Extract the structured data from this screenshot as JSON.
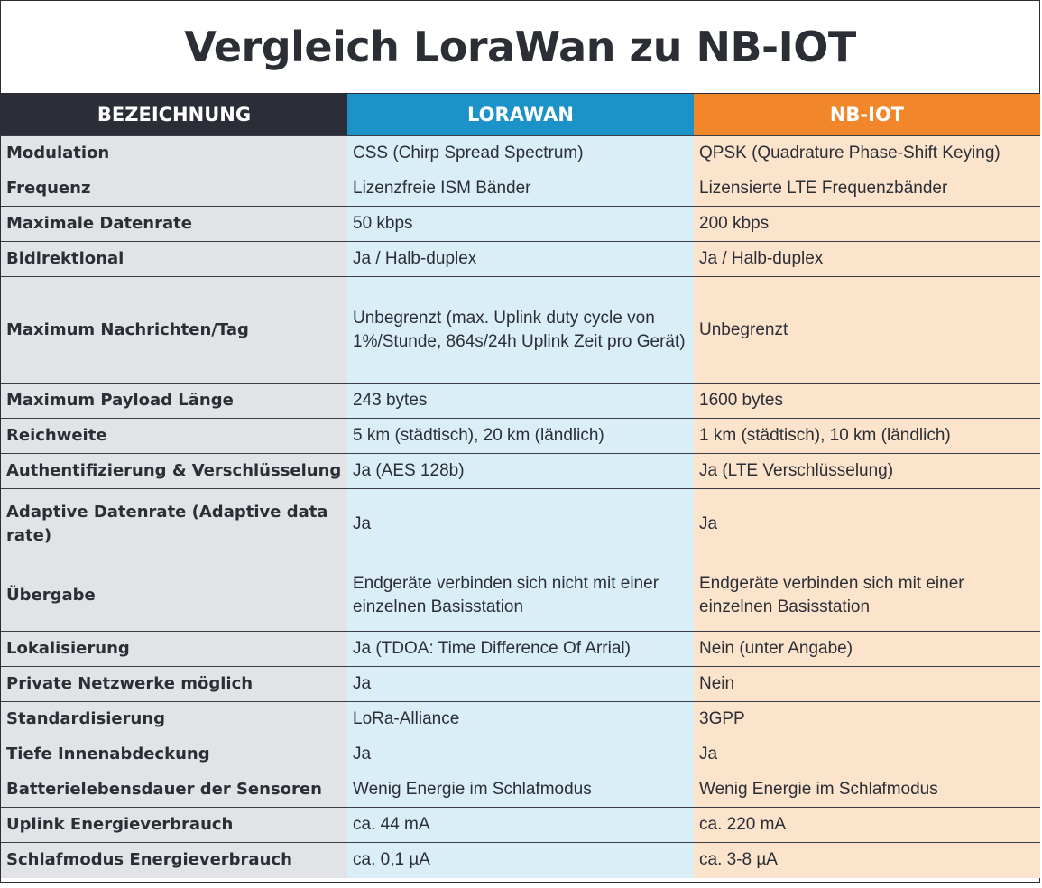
{
  "title": "Vergleich LoraWan zu NB-IOT",
  "headers": [
    "BEZEICHNUNG",
    "LORAWAN",
    "NB-IOT"
  ],
  "rows": [
    {
      "label": "Modulation",
      "lora": "CSS (Chirp Spread Spectrum)",
      "nb": "QPSK (Quadrature Phase-Shift Keying)"
    },
    {
      "label": "Frequenz",
      "lora": "Lizenzfreie ISM Bänder",
      "nb": "Lizensierte LTE Frequenzbänder"
    },
    {
      "label": "Maximale Datenrate",
      "lora": "50 kbps",
      "nb": "200 kbps"
    },
    {
      "label": "Bidirektional",
      "lora": "Ja / Halb-duplex",
      "nb": "Ja / Halb-duplex"
    },
    {
      "label": "Maximum Nachrichten/Tag",
      "lora": "Unbegrenzt (max. Uplink duty cycle von 1%/Stunde, 864s/24h Uplink Zeit pro Gerät)",
      "nb": "Unbegrenzt"
    },
    {
      "label": "Maximum Payload Länge",
      "lora": "243 bytes",
      "nb": "1600 bytes"
    },
    {
      "label": "Reichweite",
      "lora": "5 km (städtisch), 20 km (ländlich)",
      "nb": "1 km (städtisch), 10 km (ländlich)"
    },
    {
      "label": "Authentifizierung & Verschlüsselung",
      "lora": "Ja (AES 128b)",
      "nb": "Ja (LTE Verschlüsselung)"
    },
    {
      "label": "Adaptive Datenrate (Adaptive data rate)",
      "lora": "Ja",
      "nb": "Ja"
    },
    {
      "label": "Übergabe",
      "lora": "Endgeräte verbinden sich nicht mit einer einzelnen Basisstation",
      "nb": "Endgeräte verbinden sich mit einer einzelnen Basisstation"
    },
    {
      "label": "Lokalisierung",
      "lora": "Ja (TDOA: Time Difference Of Arrial)",
      "nb": "Nein (unter Angabe)"
    },
    {
      "label": "Private Netzwerke möglich",
      "lora": "Ja",
      "nb": "Nein"
    },
    {
      "label": "Standardisierung",
      "lora": "LoRa-Alliance",
      "nb": "3GPP"
    },
    {
      "label": "Tiefe Innenabdeckung",
      "lora": "Ja",
      "nb": "Ja"
    },
    {
      "label": "Batterielebensdauer der Sensoren",
      "lora": "Wenig Energie im Schlafmodus",
      "nb": "Wenig Energie im Schlafmodus"
    },
    {
      "label": "Uplink Energieverbrauch",
      "lora": "ca. 44 mA",
      "nb": "ca. 220 mA"
    },
    {
      "label": "Schlafmodus Energieverbrauch",
      "lora": "ca. 0,1 µA",
      "nb": " ca. 3-8 µA"
    }
  ]
}
